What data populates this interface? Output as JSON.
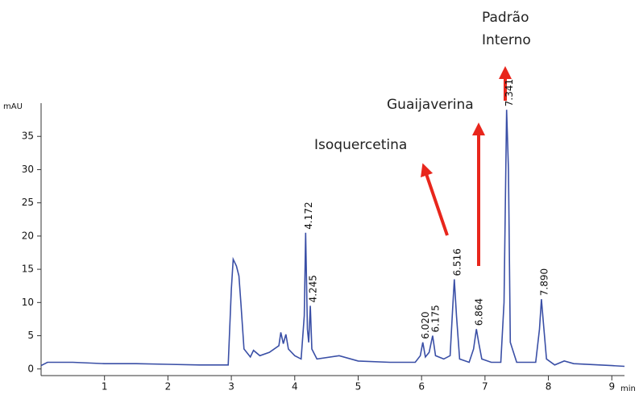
{
  "chart_data": {
    "type": "line",
    "x_label": "min",
    "y_label": "mAU",
    "xlim": [
      0,
      9.2
    ],
    "ylim": [
      -1,
      40
    ],
    "xticks": [
      1,
      2,
      3,
      4,
      5,
      6,
      7,
      8,
      9
    ],
    "yticks": [
      0,
      5,
      10,
      15,
      20,
      25,
      30,
      35
    ],
    "series": [
      {
        "color": "#3a4fa6",
        "x": [
          0,
          0.1,
          0.5,
          1,
          1.5,
          2,
          2.5,
          2.95,
          3.0,
          3.03,
          3.08,
          3.12,
          3.15,
          3.2,
          3.3,
          3.35,
          3.45,
          3.6,
          3.75,
          3.78,
          3.82,
          3.86,
          3.9,
          4.0,
          4.1,
          4.15,
          4.172,
          4.2,
          4.22,
          4.245,
          4.27,
          4.35,
          4.7,
          5.0,
          5.5,
          5.9,
          5.98,
          6.02,
          6.06,
          6.12,
          6.175,
          6.22,
          6.35,
          6.45,
          6.49,
          6.516,
          6.55,
          6.6,
          6.75,
          6.82,
          6.864,
          6.9,
          6.95,
          7.1,
          7.25,
          7.3,
          7.341,
          7.37,
          7.4,
          7.5,
          7.8,
          7.86,
          7.89,
          7.92,
          7.97,
          8.1,
          8.25,
          8.4,
          9.0,
          9.2
        ],
        "values": [
          0.5,
          1,
          1,
          0.8,
          0.8,
          0.7,
          0.6,
          0.6,
          12,
          16.5,
          15.5,
          14,
          10,
          3,
          1.8,
          2.8,
          2,
          2.5,
          3.5,
          5.5,
          3.8,
          5.2,
          3,
          2,
          1.5,
          8,
          20.5,
          6,
          4,
          9.5,
          3,
          1.5,
          2,
          1.2,
          1,
          1,
          2,
          4,
          1.8,
          2.5,
          5,
          2,
          1.5,
          2,
          9,
          13.5,
          8,
          1.5,
          1,
          3,
          6,
          4,
          1.5,
          1,
          1,
          10,
          39,
          30,
          4,
          1,
          1,
          6,
          10.5,
          7,
          1.5,
          0.6,
          1.2,
          0.8,
          0.5,
          0.4
        ]
      }
    ],
    "peak_labels": [
      {
        "value": 4.172,
        "label": "4.172"
      },
      {
        "value": 4.245,
        "label": "4.245"
      },
      {
        "value": 6.02,
        "label": "6.020"
      },
      {
        "value": 6.175,
        "label": "6.175"
      },
      {
        "value": 6.516,
        "label": "6.516"
      },
      {
        "value": 6.864,
        "label": "6.864"
      },
      {
        "value": 7.341,
        "label": "7.341"
      },
      {
        "value": 7.89,
        "label": "7.890"
      }
    ],
    "annotations": [
      "Isoquercetina",
      "Guaijaverina",
      "Padrão",
      "Interno"
    ]
  }
}
